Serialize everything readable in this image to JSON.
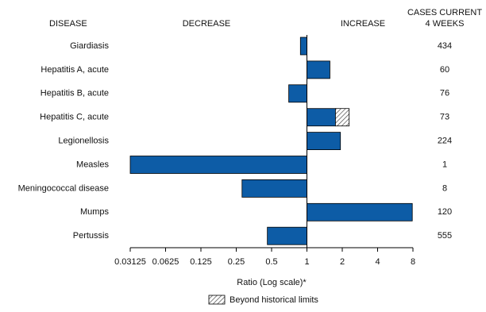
{
  "chart_data": {
    "type": "bar",
    "orientation": "horizontal",
    "xscale": "log",
    "headers": {
      "disease": "DISEASE",
      "decrease": "DECREASE",
      "increase": "INCREASE",
      "cases": [
        "CASES CURRENT",
        "4 WEEKS"
      ]
    },
    "categories": [
      "Giardiasis",
      "Hepatitis A, acute",
      "Hepatitis B, acute",
      "Hepatitis C, acute",
      "Legionellosis",
      "Measles",
      "Meningococcal disease",
      "Mumps",
      "Pertussis"
    ],
    "values": [
      0.88,
      1.57,
      0.7,
      2.29,
      1.93,
      0.03125,
      0.28,
      7.9,
      0.46
    ],
    "historical_limit": [
      null,
      null,
      null,
      1.75,
      null,
      null,
      null,
      null,
      null
    ],
    "cases": [
      434,
      60,
      76,
      73,
      224,
      1,
      8,
      120,
      555
    ],
    "color": "#0d5ca6",
    "xlim": [
      0.03125,
      8
    ],
    "xticks": [
      0.03125,
      0.0625,
      0.125,
      0.25,
      0.5,
      1,
      2,
      4,
      8
    ],
    "xlabel": "Ratio (Log scale)*",
    "legend_label": "Beyond historical limits"
  }
}
